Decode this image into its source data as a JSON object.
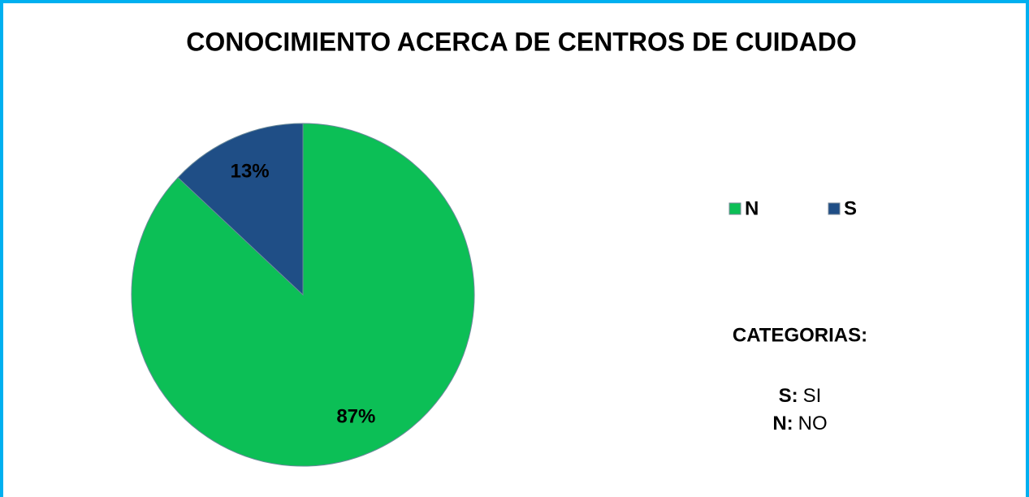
{
  "chart_data": {
    "type": "pie",
    "title": "CONOCIMIENTO ACERCA DE CENTROS DE CUIDADO",
    "categories": [
      "N",
      "S"
    ],
    "values": [
      87,
      13
    ],
    "value_labels": [
      "87%",
      "13%"
    ],
    "colors": [
      "#0cbf56",
      "#1f4e86"
    ],
    "legend": "right",
    "annotation": {
      "heading": "CATEGORIAS:",
      "items": [
        {
          "key": "S:",
          "text": "SI"
        },
        {
          "key": "N:",
          "text": "NO"
        }
      ]
    }
  }
}
